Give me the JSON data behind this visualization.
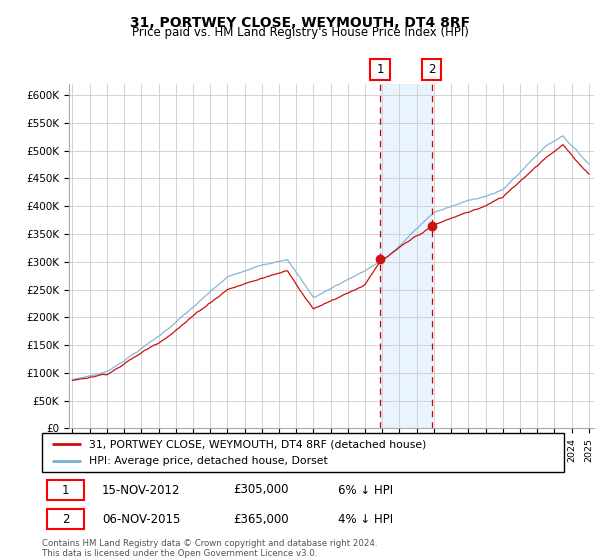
{
  "title": "31, PORTWEY CLOSE, WEYMOUTH, DT4 8RF",
  "subtitle": "Price paid vs. HM Land Registry's House Price Index (HPI)",
  "ylabel_ticks": [
    "£0",
    "£50K",
    "£100K",
    "£150K",
    "£200K",
    "£250K",
    "£300K",
    "£350K",
    "£400K",
    "£450K",
    "£500K",
    "£550K",
    "£600K"
  ],
  "ytick_values": [
    0,
    50000,
    100000,
    150000,
    200000,
    250000,
    300000,
    350000,
    400000,
    450000,
    500000,
    550000,
    600000
  ],
  "ylim": [
    0,
    620000
  ],
  "hpi_color": "#7bafd4",
  "price_color": "#cc1111",
  "sale1_date": "15-NOV-2012",
  "sale1_price": 305000,
  "sale1_label": "1",
  "sale1_pct": "6% ↓ HPI",
  "sale2_date": "06-NOV-2015",
  "sale2_price": 365000,
  "sale2_label": "2",
  "sale2_pct": "4% ↓ HPI",
  "legend_line1": "31, PORTWEY CLOSE, WEYMOUTH, DT4 8RF (detached house)",
  "legend_line2": "HPI: Average price, detached house, Dorset",
  "footnote": "Contains HM Land Registry data © Crown copyright and database right 2024.\nThis data is licensed under the Open Government Licence v3.0.",
  "background_color": "#ffffff",
  "grid_color": "#cccccc",
  "shade_color": "#ddeeff",
  "xstart": 1995,
  "xend": 2025
}
